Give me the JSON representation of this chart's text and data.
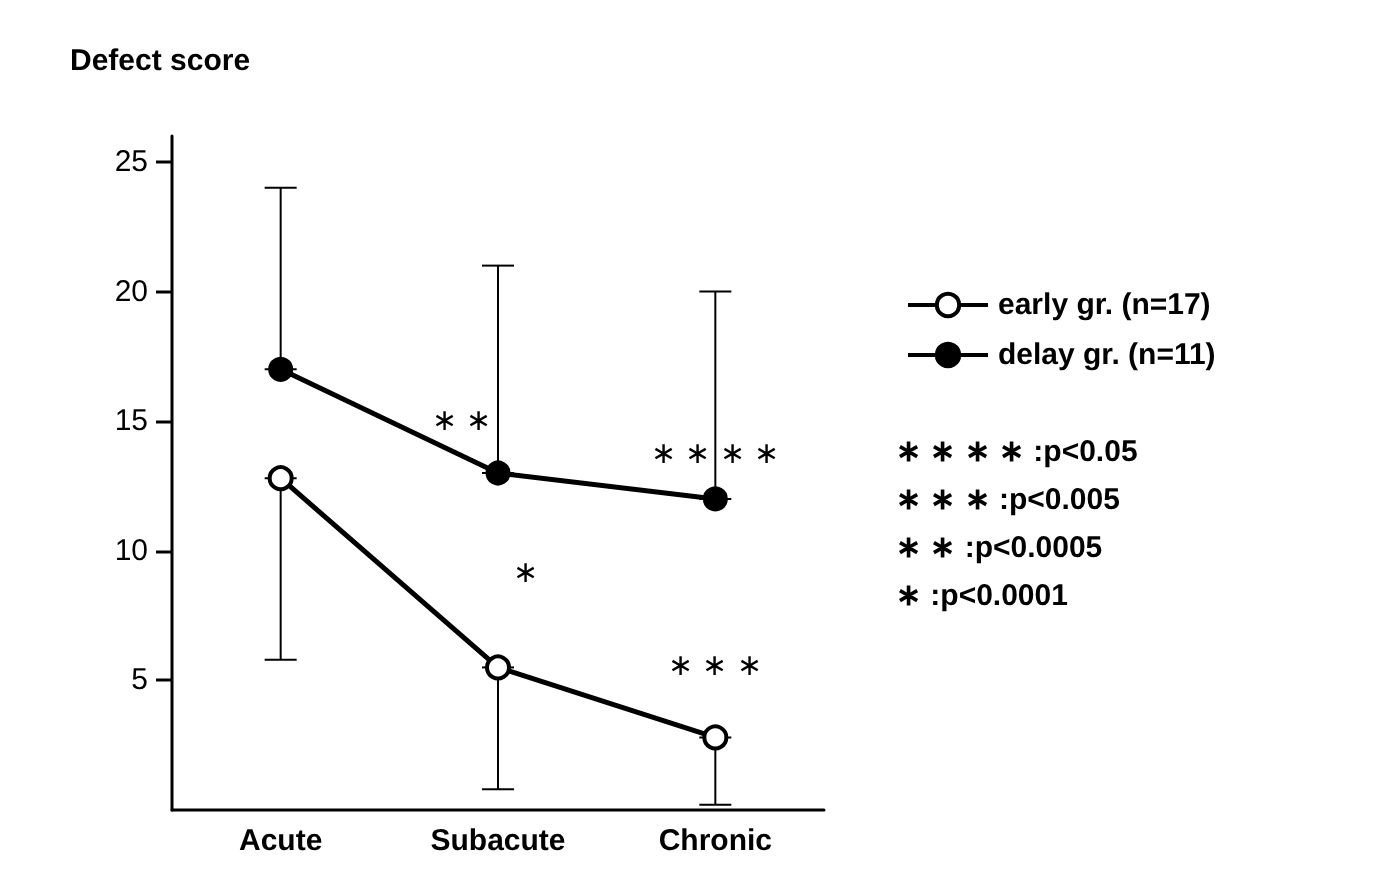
{
  "chart_data": {
    "type": "line",
    "ylabel": "Defect score",
    "categories": [
      "Acute",
      "Subacute",
      "Chronic"
    ],
    "ylim": [
      0,
      26
    ],
    "yticks": [
      5,
      10,
      15,
      20,
      25
    ],
    "series": [
      {
        "name": "early gr. (n=17)",
        "color": "#000000",
        "values": [
          12.8,
          5.5,
          2.8
        ],
        "errors": [
          [
            5.8,
            12.8
          ],
          [
            0.8,
            5.5
          ],
          [
            0.2,
            2.8
          ]
        ]
      },
      {
        "name": "delay gr. (n=11)",
        "color": "#000000",
        "values": [
          17,
          13,
          12
        ],
        "errors": [
          [
            17,
            24
          ],
          [
            13,
            21
          ],
          [
            12,
            20
          ]
        ]
      }
    ],
    "marker": "circle",
    "legend": "right",
    "grid": false,
    "annotations": [
      "∗ ∗",
      "∗ ∗ ∗ ∗",
      "∗",
      "∗ ∗ ∗",
      "∗ ∗ ∗ ∗ :p<0.05",
      "∗ ∗ ∗ :p<0.005",
      "∗ ∗ :p<0.0005",
      "∗ :p<0.0001"
    ]
  }
}
